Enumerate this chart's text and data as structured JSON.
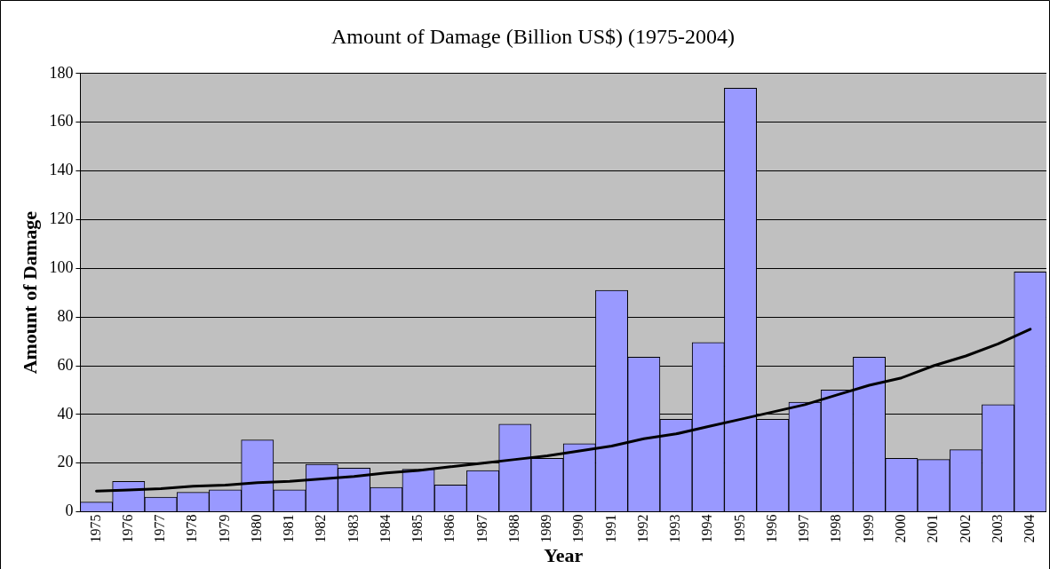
{
  "chart_data": {
    "type": "bar",
    "title": "Amount of Damage (Billion US$) (1975-2004)",
    "xlabel": "Year",
    "ylabel": "Amount of Damage",
    "categories": [
      "1975",
      "1976",
      "1977",
      "1978",
      "1979",
      "1980",
      "1981",
      "1982",
      "1983",
      "1984",
      "1985",
      "1986",
      "1987",
      "1988",
      "1989",
      "1990",
      "1991",
      "1992",
      "1993",
      "1994",
      "1995",
      "1996",
      "1997",
      "1998",
      "1999",
      "2000",
      "2001",
      "2002",
      "2003",
      "2004"
    ],
    "series": [
      {
        "color": "#9999ff",
        "values": [
          4,
          12.5,
          6,
          8,
          9,
          29.5,
          9,
          19.5,
          18,
          10,
          17.5,
          11,
          17,
          36,
          22,
          28,
          91,
          63.5,
          38,
          69.5,
          174,
          38,
          45,
          50,
          63.5,
          22,
          21.5,
          25.5,
          44,
          98.5
        ]
      },
      {
        "type": "line",
        "color": "#000000",
        "values": [
          8.5,
          9,
          9.5,
          10.5,
          11,
          12,
          12.5,
          13.5,
          14.5,
          16,
          17,
          18.5,
          20,
          21.5,
          23,
          25,
          27,
          30,
          32,
          35,
          38,
          41,
          44,
          48,
          52,
          55,
          60,
          64,
          69,
          75
        ]
      }
    ],
    "ylim": [
      0,
      180
    ],
    "yticks": [
      0,
      20,
      40,
      60,
      80,
      100,
      120,
      140,
      160,
      180
    ],
    "grid": "y",
    "legend": false,
    "marker": "none",
    "line_style": "solid"
  }
}
